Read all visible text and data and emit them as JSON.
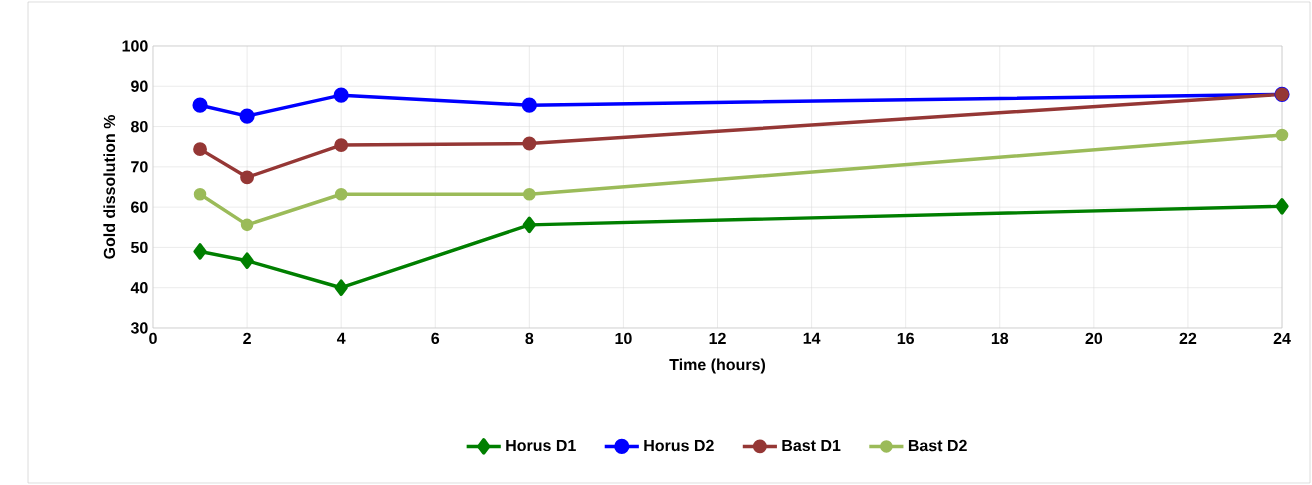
{
  "chart_data": {
    "type": "line",
    "xlabel": "Time (hours)",
    "ylabel": "Gold dissolution %",
    "x": [
      1,
      2,
      4,
      8,
      24
    ],
    "series": [
      {
        "name": "Horus D1",
        "color": "#007f00",
        "marker": "diamond",
        "values": [
          49,
          46.7,
          40,
          55.6,
          60.2
        ]
      },
      {
        "name": "Horus D2",
        "color": "#0000ff",
        "marker": "circle",
        "values": [
          85.3,
          82.6,
          87.8,
          85.3,
          88
        ]
      },
      {
        "name": "Bast D1",
        "color": "#953735",
        "marker": "circle",
        "values": [
          74.4,
          67.4,
          75.4,
          75.8,
          88
        ]
      },
      {
        "name": "Bast D2",
        "color": "#9bbb59",
        "marker": "circle",
        "values": [
          63.2,
          55.6,
          63.2,
          63.2,
          77.9
        ]
      }
    ],
    "xlim": [
      0,
      24
    ],
    "ylim": [
      30,
      100
    ],
    "xticks": [
      0,
      2,
      4,
      6,
      8,
      10,
      12,
      14,
      16,
      18,
      20,
      22,
      24
    ],
    "yticks": [
      30,
      40,
      50,
      60,
      70,
      80,
      90,
      100
    ],
    "grid": true,
    "legend": "bottom",
    "line_style": "solid"
  }
}
